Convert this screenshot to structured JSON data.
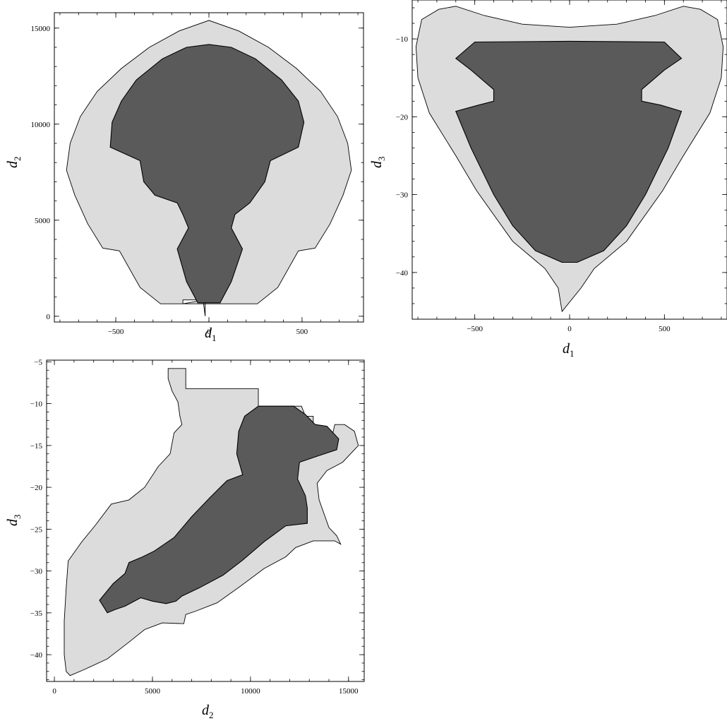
{
  "chart_data": [
    {
      "type": "area",
      "panel": "d1-d2",
      "xlabel": {
        "base": "d",
        "sub": "1"
      },
      "ylabel": {
        "base": "d",
        "sub": "2"
      },
      "xlim": [
        -830,
        830
      ],
      "ylim": [
        -300,
        15800
      ],
      "xticks": [
        -500,
        0,
        500
      ],
      "xtick_labels": [
        "−500",
        "0",
        "500"
      ],
      "yticks": [
        0,
        5000,
        10000,
        15000
      ],
      "ytick_labels": [
        "0",
        "5000",
        "10000",
        "15000"
      ],
      "regions": [
        {
          "level": "outer",
          "points": [
            [
              -20,
              0
            ],
            [
              -20,
              850
            ],
            [
              -140,
              850
            ],
            [
              -140,
              650
            ],
            [
              -260,
              650
            ],
            [
              -370,
              1500
            ],
            [
              -480,
              3400
            ],
            [
              -570,
              3550
            ],
            [
              -650,
              4800
            ],
            [
              -720,
              6300
            ],
            [
              -765,
              7600
            ],
            [
              -745,
              9000
            ],
            [
              -690,
              10400
            ],
            [
              -600,
              11700
            ],
            [
              -470,
              12900
            ],
            [
              -320,
              14000
            ],
            [
              -160,
              14850
            ],
            [
              0,
              15400
            ],
            [
              160,
              14850
            ],
            [
              320,
              14000
            ],
            [
              470,
              12900
            ],
            [
              600,
              11700
            ],
            [
              690,
              10400
            ],
            [
              745,
              9000
            ],
            [
              765,
              7600
            ],
            [
              720,
              6300
            ],
            [
              650,
              4800
            ],
            [
              570,
              3550
            ],
            [
              480,
              3400
            ],
            [
              370,
              1500
            ],
            [
              260,
              650
            ],
            [
              -140,
              650
            ],
            [
              -20,
              850
            ],
            [
              -40,
              1500
            ]
          ]
        },
        {
          "level": "inner",
          "points": [
            [
              -60,
              700
            ],
            [
              -120,
              1800
            ],
            [
              -170,
              3500
            ],
            [
              -110,
              4600
            ],
            [
              -140,
              5300
            ],
            [
              -170,
              5900
            ],
            [
              -290,
              6300
            ],
            [
              -350,
              7000
            ],
            [
              -370,
              8100
            ],
            [
              -530,
              8800
            ],
            [
              -520,
              10100
            ],
            [
              -470,
              11200
            ],
            [
              -390,
              12300
            ],
            [
              -250,
              13400
            ],
            [
              -120,
              14000
            ],
            [
              0,
              14150
            ],
            [
              120,
              14000
            ],
            [
              250,
              13400
            ],
            [
              390,
              12300
            ],
            [
              480,
              11200
            ],
            [
              510,
              10100
            ],
            [
              480,
              8800
            ],
            [
              330,
              8100
            ],
            [
              300,
              7000
            ],
            [
              220,
              5900
            ],
            [
              140,
              5300
            ],
            [
              120,
              4600
            ],
            [
              180,
              3500
            ],
            [
              120,
              1800
            ],
            [
              60,
              700
            ]
          ]
        }
      ]
    },
    {
      "type": "area",
      "panel": "d1-d3",
      "xlabel": {
        "base": "d",
        "sub": "1"
      },
      "ylabel": {
        "base": "d",
        "sub": "3"
      },
      "xlim": [
        -830,
        830
      ],
      "ylim": [
        -46,
        -5
      ],
      "xticks": [
        -500,
        0,
        500
      ],
      "xtick_labels": [
        "−500",
        "0",
        "500"
      ],
      "yticks": [
        -40,
        -30,
        -20,
        -10
      ],
      "ytick_labels": [
        "−40",
        "−30",
        "−20",
        "−10"
      ],
      "regions": [
        {
          "level": "outer",
          "points": [
            [
              -40,
              -45
            ],
            [
              -60,
              -42
            ],
            [
              -130,
              -39.5
            ],
            [
              -300,
              -36
            ],
            [
              -490,
              -29.5
            ],
            [
              -600,
              -25
            ],
            [
              -740,
              -19.5
            ],
            [
              -800,
              -15
            ],
            [
              -810,
              -11
            ],
            [
              -780,
              -7.5
            ],
            [
              -690,
              -6.2
            ],
            [
              -600,
              -5.8
            ],
            [
              -450,
              -7
            ],
            [
              -250,
              -8.1
            ],
            [
              0,
              -8.5
            ],
            [
              250,
              -8.1
            ],
            [
              450,
              -7
            ],
            [
              600,
              -5.8
            ],
            [
              690,
              -6.2
            ],
            [
              780,
              -7.5
            ],
            [
              810,
              -11
            ],
            [
              800,
              -15
            ],
            [
              740,
              -19.5
            ],
            [
              600,
              -25
            ],
            [
              490,
              -29.5
            ],
            [
              300,
              -36
            ],
            [
              130,
              -39.5
            ],
            [
              60,
              -42
            ]
          ]
        },
        {
          "level": "inner",
          "points": [
            [
              -40,
              -38.7
            ],
            [
              -180,
              -37.2
            ],
            [
              -300,
              -34
            ],
            [
              -400,
              -30
            ],
            [
              -520,
              -24
            ],
            [
              -600,
              -19.3
            ],
            [
              -480,
              -18.5
            ],
            [
              -400,
              -18
            ],
            [
              -400,
              -16.5
            ],
            [
              -520,
              -14
            ],
            [
              -600,
              -12.5
            ],
            [
              -500,
              -10.4
            ],
            [
              0,
              -10.3
            ],
            [
              500,
              -10.4
            ],
            [
              590,
              -12.5
            ],
            [
              500,
              -14
            ],
            [
              380,
              -16.5
            ],
            [
              380,
              -18
            ],
            [
              480,
              -18.5
            ],
            [
              590,
              -19.3
            ],
            [
              520,
              -24
            ],
            [
              400,
              -30
            ],
            [
              300,
              -34
            ],
            [
              180,
              -37.2
            ],
            [
              40,
              -38.7
            ]
          ]
        }
      ]
    },
    {
      "type": "area",
      "panel": "d2-d3",
      "xlabel": {
        "base": "d",
        "sub": "2"
      },
      "ylabel": {
        "base": "d",
        "sub": "3"
      },
      "xlim": [
        -400,
        15800
      ],
      "ylim": [
        -43.2,
        -4.8
      ],
      "xticks": [
        0,
        5000,
        10000,
        15000
      ],
      "xtick_labels": [
        "0",
        "5000",
        "10000",
        "15000"
      ],
      "yticks": [
        -40,
        -35,
        -30,
        -25,
        -20,
        -15,
        -10,
        -5
      ],
      "ytick_labels": [
        "−40",
        "−35",
        "−30",
        "−25",
        "−20",
        "−15",
        "−10",
        "−5"
      ],
      "regions": [
        {
          "level": "outer",
          "points": [
            [
              800,
              -42.5
            ],
            [
              1500,
              -41.8
            ],
            [
              2700,
              -40.5
            ],
            [
              3800,
              -38.5
            ],
            [
              4600,
              -37
            ],
            [
              5500,
              -36.2
            ],
            [
              6600,
              -36.3
            ],
            [
              6700,
              -35.2
            ],
            [
              7200,
              -34.8
            ],
            [
              8300,
              -33.8
            ],
            [
              9500,
              -31.8
            ],
            [
              10700,
              -29.7
            ],
            [
              11800,
              -28.3
            ],
            [
              12300,
              -27.2
            ],
            [
              13200,
              -26.4
            ],
            [
              14300,
              -26.4
            ],
            [
              14600,
              -26.8
            ],
            [
              14400,
              -25.8
            ],
            [
              14000,
              -24.8
            ],
            [
              13500,
              -21.5
            ],
            [
              13400,
              -19.5
            ],
            [
              13900,
              -18
            ],
            [
              14700,
              -17
            ],
            [
              15500,
              -15
            ],
            [
              15300,
              -13.3
            ],
            [
              14800,
              -12.5
            ],
            [
              14300,
              -12.5
            ],
            [
              14200,
              -13.5
            ],
            [
              13200,
              -13.5
            ],
            [
              13200,
              -11.5
            ],
            [
              12800,
              -11.5
            ],
            [
              12600,
              -10.3
            ],
            [
              10400,
              -10.3
            ],
            [
              10400,
              -8.2
            ],
            [
              6700,
              -8.2
            ],
            [
              6700,
              -5.8
            ],
            [
              5800,
              -5.8
            ],
            [
              5800,
              -7
            ],
            [
              6000,
              -8.5
            ],
            [
              6300,
              -9.8
            ],
            [
              6400,
              -11.5
            ],
            [
              6500,
              -12.5
            ],
            [
              6100,
              -13.5
            ],
            [
              5900,
              -16
            ],
            [
              5300,
              -17.5
            ],
            [
              4600,
              -20
            ],
            [
              3800,
              -21.5
            ],
            [
              2900,
              -22
            ],
            [
              2100,
              -24.5
            ],
            [
              1400,
              -26.5
            ],
            [
              700,
              -28.8
            ],
            [
              600,
              -32
            ],
            [
              500,
              -36
            ],
            [
              500,
              -40
            ],
            [
              600,
              -42
            ]
          ]
        },
        {
          "level": "inner",
          "points": [
            [
              2700,
              -35
            ],
            [
              3100,
              -34.6
            ],
            [
              3600,
              -34.2
            ],
            [
              4400,
              -33.2
            ],
            [
              5000,
              -33.6
            ],
            [
              5700,
              -33.9
            ],
            [
              6200,
              -33.6
            ],
            [
              6500,
              -33
            ],
            [
              7400,
              -32
            ],
            [
              8600,
              -30.5
            ],
            [
              9600,
              -28.7
            ],
            [
              10700,
              -26.5
            ],
            [
              11800,
              -24.6
            ],
            [
              12900,
              -24.3
            ],
            [
              12900,
              -22.5
            ],
            [
              12800,
              -21
            ],
            [
              12400,
              -19
            ],
            [
              12500,
              -17
            ],
            [
              13500,
              -16.2
            ],
            [
              14400,
              -15.5
            ],
            [
              14500,
              -14.2
            ],
            [
              13900,
              -12.7
            ],
            [
              13300,
              -12.5
            ],
            [
              12800,
              -11.3
            ],
            [
              12200,
              -10.3
            ],
            [
              10400,
              -10.3
            ],
            [
              9700,
              -11.5
            ],
            [
              9400,
              -13.3
            ],
            [
              9300,
              -16
            ],
            [
              9600,
              -18.5
            ],
            [
              8800,
              -19.2
            ],
            [
              7900,
              -21.3
            ],
            [
              7000,
              -23.5
            ],
            [
              6100,
              -26
            ],
            [
              5100,
              -27.6
            ],
            [
              4500,
              -28.3
            ],
            [
              3800,
              -29
            ],
            [
              3600,
              -30.3
            ],
            [
              3000,
              -31.5
            ],
            [
              2300,
              -33.5
            ]
          ]
        }
      ]
    }
  ]
}
